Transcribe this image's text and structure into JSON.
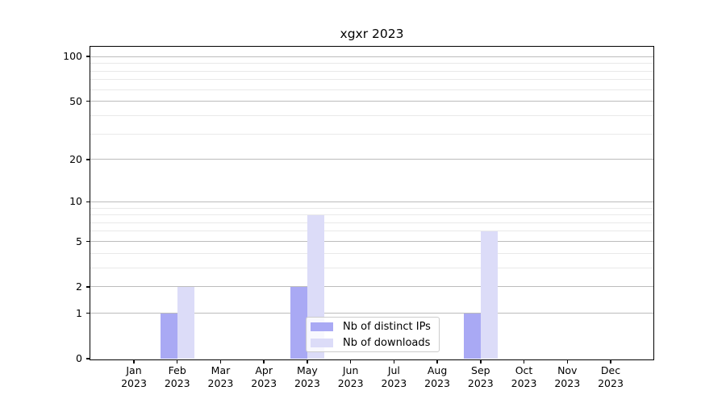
{
  "title": "xgxr 2023",
  "chart_data": {
    "type": "bar",
    "title": "xgxr 2023",
    "yscale": "log1p",
    "months": [
      "Jan",
      "Feb",
      "Mar",
      "Apr",
      "May",
      "Jun",
      "Jul",
      "Aug",
      "Sep",
      "Oct",
      "Nov",
      "Dec"
    ],
    "year": "2023",
    "series": [
      {
        "name": "Nb of distinct IPs",
        "color": "#a9a9f4",
        "values": [
          0,
          1,
          0,
          0,
          2,
          0,
          0,
          0,
          1,
          0,
          0,
          0
        ]
      },
      {
        "name": "Nb of downloads",
        "color": "#dcdcf8",
        "values": [
          0,
          2,
          0,
          0,
          8,
          0,
          0,
          0,
          6,
          0,
          0,
          0
        ]
      }
    ],
    "y_major_ticks": [
      0,
      1,
      2,
      5,
      10,
      20,
      50,
      100
    ],
    "y_minor_ticks": [
      3,
      4,
      6,
      7,
      8,
      9,
      30,
      40,
      60,
      70,
      80,
      90
    ],
    "ylim": [
      0,
      115
    ],
    "grid": {
      "major_color": "#bcbcbc",
      "minor_color": "#e9e9e9"
    },
    "legend_position": "lower center"
  }
}
